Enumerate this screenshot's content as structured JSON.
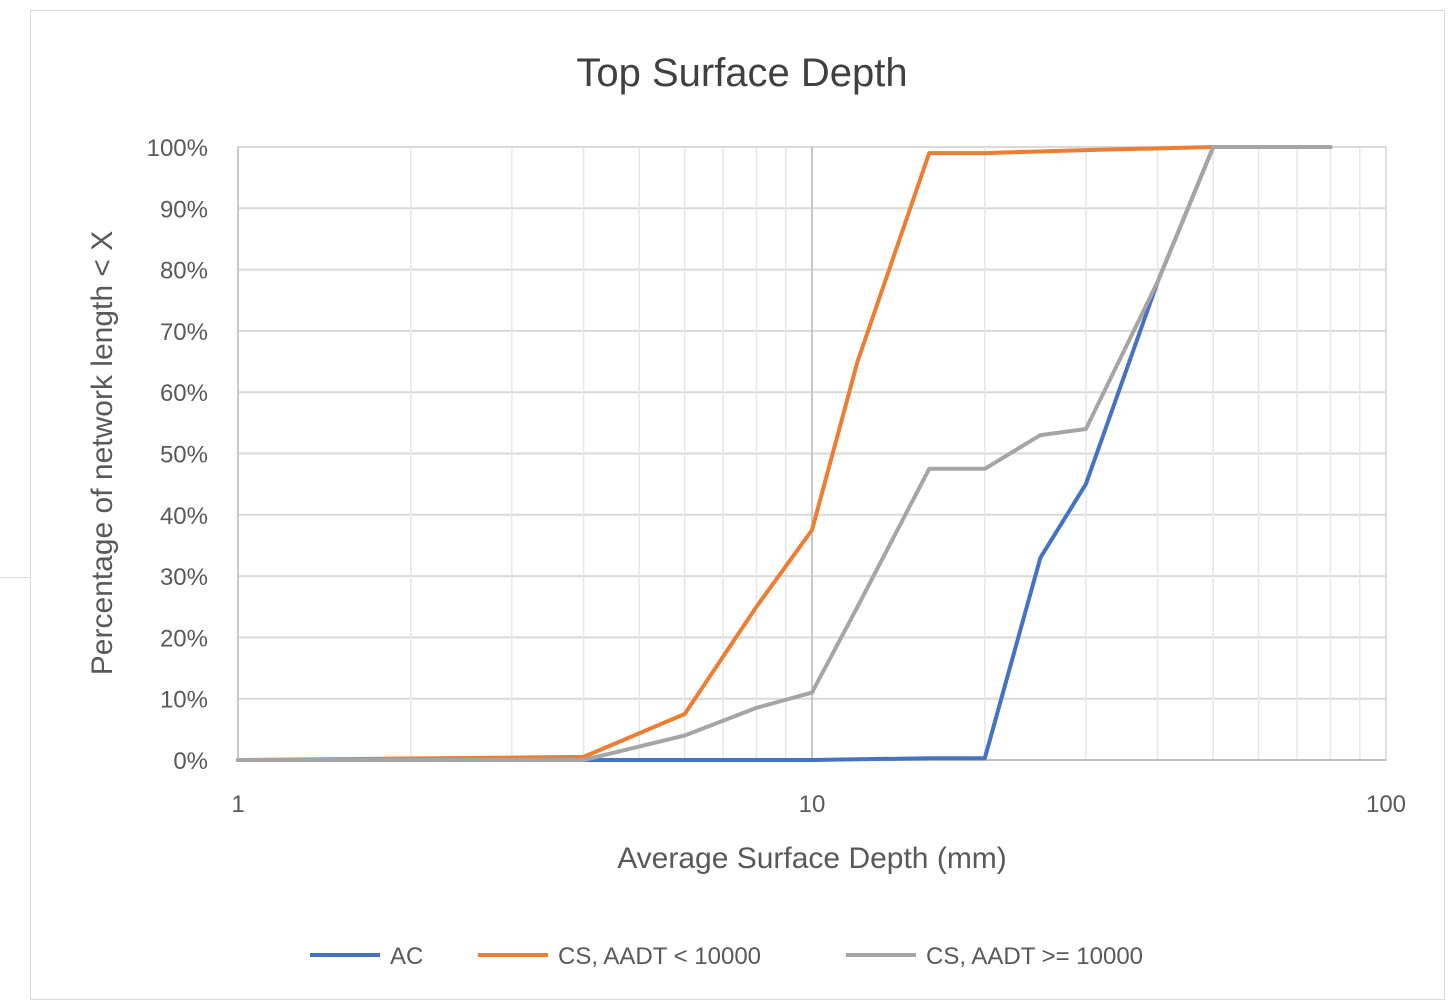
{
  "chart_data": {
    "type": "line",
    "title": "Top Surface Depth",
    "xlabel": "Average Surface Depth (mm)",
    "ylabel": "Percentage of network length < X",
    "x_scale": "log",
    "xlim": [
      1,
      100
    ],
    "ylim": [
      0,
      100
    ],
    "x_ticks": [
      1,
      10,
      100
    ],
    "x_tick_labels": [
      "1",
      "10",
      "100"
    ],
    "y_ticks": [
      0,
      10,
      20,
      30,
      40,
      50,
      60,
      70,
      80,
      90,
      100
    ],
    "y_tick_labels": [
      "0%",
      "10%",
      "20%",
      "30%",
      "40%",
      "50%",
      "60%",
      "70%",
      "80%",
      "90%",
      "100%"
    ],
    "grid": true,
    "legend_position": "bottom",
    "series": [
      {
        "name": "AC",
        "color": "#4472c4",
        "points": [
          [
            1,
            0
          ],
          [
            4,
            0
          ],
          [
            10,
            0
          ],
          [
            16,
            0.3
          ],
          [
            20,
            0.3
          ],
          [
            25,
            33
          ],
          [
            30,
            45
          ],
          [
            40,
            78
          ],
          [
            50,
            100
          ],
          [
            80,
            100
          ]
        ]
      },
      {
        "name": "CS, AADT < 10000",
        "color": "#ed7d31",
        "points": [
          [
            1,
            0
          ],
          [
            4,
            0.5
          ],
          [
            6,
            7.5
          ],
          [
            8,
            25
          ],
          [
            10,
            37.5
          ],
          [
            12,
            65
          ],
          [
            16,
            99
          ],
          [
            20,
            99
          ],
          [
            30,
            99.5
          ],
          [
            50,
            100
          ]
        ]
      },
      {
        "name": "CS, AADT >= 10000",
        "color": "#a5a5a5",
        "points": [
          [
            1,
            0
          ],
          [
            4,
            0
          ],
          [
            6,
            4
          ],
          [
            8,
            8.5
          ],
          [
            10,
            11
          ],
          [
            12,
            25
          ],
          [
            16,
            47.5
          ],
          [
            20,
            47.5
          ],
          [
            25,
            53
          ],
          [
            30,
            54
          ],
          [
            40,
            78
          ],
          [
            50,
            100
          ],
          [
            80,
            100
          ]
        ]
      }
    ]
  }
}
